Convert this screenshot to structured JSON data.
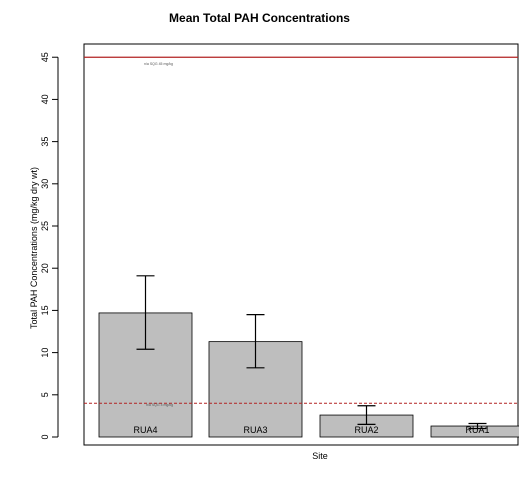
{
  "chart_data": {
    "type": "bar",
    "title": "Mean Total PAH Concentrations",
    "xlabel": "Site",
    "ylabel": "Total PAH Concentrations (mg/kg dry wt)",
    "categories": [
      "RUA4",
      "RUA3",
      "RUA2",
      "RUA1"
    ],
    "values": [
      14.7,
      11.3,
      2.6,
      1.3
    ],
    "error_bars": [
      {
        "low": 10.4,
        "high": 19.1
      },
      {
        "low": 8.2,
        "high": 14.5
      },
      {
        "low": 1.5,
        "high": 3.7
      },
      {
        "low": 1.0,
        "high": 1.6
      }
    ],
    "ylim": [
      0,
      45.5
    ],
    "yticks": [
      0,
      5,
      10,
      15,
      20,
      25,
      30,
      35,
      40,
      45
    ],
    "grid": false,
    "bar_color": "#bebebe",
    "reference_lines": [
      {
        "value": 45,
        "style": "solid",
        "color": "#b22222",
        "label": "n/a SQG 45 mg/kg"
      },
      {
        "value": 4,
        "style": "dashed",
        "color": "#b22222",
        "label": "n/a SQG 4 mg/kg"
      }
    ]
  }
}
